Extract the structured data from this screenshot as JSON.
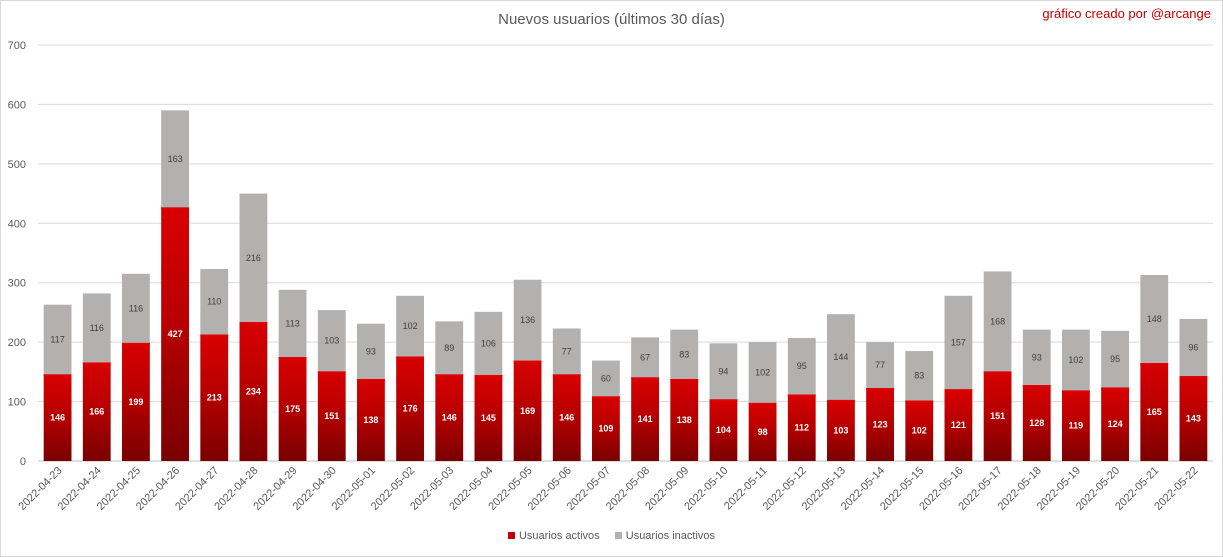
{
  "chart_data": {
    "type": "bar",
    "stacked": true,
    "title": "Nuevos usuarios (últimos 30 días)",
    "annotation": "gráfico creado por @arcange",
    "xlabel": "",
    "ylabel": "",
    "ylim": [
      0,
      700
    ],
    "yticks": [
      0,
      100,
      200,
      300,
      400,
      500,
      600,
      700
    ],
    "grid": true,
    "legend_position": "bottom",
    "categories": [
      "2022-04-23",
      "2022-04-24",
      "2022-04-25",
      "2022-04-26",
      "2022-04-27",
      "2022-04-28",
      "2022-04-29",
      "2022-04-30",
      "2022-05-01",
      "2022-05-02",
      "2022-05-03",
      "2022-05-04",
      "2022-05-05",
      "2022-05-06",
      "2022-05-07",
      "2022-05-08",
      "2022-05-09",
      "2022-05-10",
      "2022-05-11",
      "2022-05-12",
      "2022-05-13",
      "2022-05-14",
      "2022-05-15",
      "2022-05-16",
      "2022-05-17",
      "2022-05-18",
      "2022-05-19",
      "2022-05-20",
      "2022-05-21",
      "2022-05-22"
    ],
    "series": [
      {
        "name": "Usuarios activos",
        "color": "#c00000",
        "values": [
          146,
          166,
          199,
          427,
          213,
          234,
          175,
          151,
          138,
          176,
          146,
          145,
          169,
          146,
          109,
          141,
          138,
          104,
          98,
          112,
          103,
          123,
          102,
          121,
          151,
          128,
          119,
          124,
          165,
          143
        ]
      },
      {
        "name": "Usuarios inactivos",
        "color": "#b3b0b0",
        "values": [
          117,
          116,
          116,
          163,
          110,
          216,
          113,
          103,
          93,
          102,
          89,
          106,
          136,
          77,
          60,
          67,
          83,
          94,
          102,
          95,
          144,
          77,
          83,
          157,
          168,
          93,
          102,
          95,
          148,
          96
        ]
      }
    ]
  }
}
